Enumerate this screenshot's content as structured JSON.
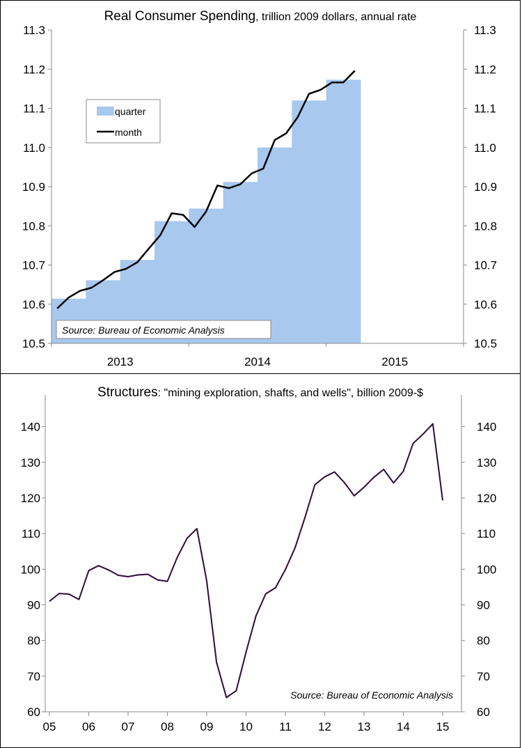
{
  "chart_data": [
    {
      "type": "bar",
      "title": "Real Consumer Spending",
      "subtitle": ", trillion 2009 dollars, annual rate",
      "ylim": [
        10.5,
        11.3
      ],
      "yticks": [
        "10.5",
        "10.6",
        "10.7",
        "10.8",
        "10.9",
        "11.0",
        "11.1",
        "11.2",
        "11.3"
      ],
      "xticks": [
        "2013",
        "2014",
        "2015"
      ],
      "source": "Source: Bureau of Economic Analysis",
      "legend_position": "upper-left",
      "series": [
        {
          "name": "quarter",
          "type": "step-area",
          "color": "#a8c8ee",
          "x": [
            "2013Q1",
            "2013Q2",
            "2013Q3",
            "2013Q4",
            "2014Q1",
            "2014Q2",
            "2014Q3",
            "2014Q4",
            "2015Q1",
            "2015Q2",
            "2015Q3",
            "2015Q4"
          ],
          "values": [
            10.614,
            10.661,
            10.713,
            10.812,
            10.844,
            10.912,
            11.0,
            11.12,
            11.173,
            null,
            null,
            null
          ]
        },
        {
          "name": "month",
          "type": "line",
          "color": "#000000",
          "x": [
            "2013-01",
            "2013-02",
            "2013-03",
            "2013-04",
            "2013-05",
            "2013-06",
            "2013-07",
            "2013-08",
            "2013-09",
            "2013-10",
            "2013-11",
            "2013-12",
            "2014-01",
            "2014-02",
            "2014-03",
            "2014-04",
            "2014-05",
            "2014-06",
            "2014-07",
            "2014-08",
            "2014-09",
            "2014-10",
            "2014-11",
            "2014-12",
            "2015-01",
            "2015-02",
            "2015-03"
          ],
          "values": [
            10.589,
            10.617,
            10.634,
            10.642,
            10.661,
            10.682,
            10.69,
            10.707,
            10.742,
            10.776,
            10.832,
            10.828,
            10.797,
            10.836,
            10.903,
            10.896,
            10.906,
            10.934,
            10.946,
            11.019,
            11.036,
            11.077,
            11.137,
            11.147,
            11.166,
            11.166,
            11.196
          ]
        }
      ]
    },
    {
      "type": "line",
      "title": "Structures",
      "subtitle": ": \"mining exploration, shafts, and wells\", billion 2009-$",
      "ylim": [
        60,
        145
      ],
      "yticks": [
        "60",
        "70",
        "80",
        "90",
        "100",
        "110",
        "120",
        "130",
        "140"
      ],
      "xticks": [
        "05",
        "06",
        "07",
        "08",
        "09",
        "10",
        "11",
        "12",
        "13",
        "14",
        "15"
      ],
      "source": "Source: Bureau of Economic Analysis",
      "series": [
        {
          "name": "",
          "color": "#2e0a3a",
          "x": [
            "2005Q1",
            "2005Q2",
            "2005Q3",
            "2005Q4",
            "2006Q1",
            "2006Q2",
            "2006Q3",
            "2006Q4",
            "2007Q1",
            "2007Q2",
            "2007Q3",
            "2007Q4",
            "2008Q1",
            "2008Q2",
            "2008Q3",
            "2008Q4",
            "2009Q1",
            "2009Q2",
            "2009Q3",
            "2009Q4",
            "2010Q1",
            "2010Q2",
            "2010Q3",
            "2010Q4",
            "2011Q1",
            "2011Q2",
            "2011Q3",
            "2011Q4",
            "2012Q1",
            "2012Q2",
            "2012Q3",
            "2012Q4",
            "2013Q1",
            "2013Q2",
            "2013Q3",
            "2013Q4",
            "2014Q1",
            "2014Q2",
            "2014Q3",
            "2014Q4",
            "2015Q1"
          ],
          "values": [
            91.0,
            93.2,
            93.0,
            91.5,
            99.6,
            101.0,
            99.8,
            98.3,
            97.9,
            98.4,
            98.6,
            97.0,
            96.6,
            103.3,
            108.7,
            111.4,
            96.7,
            73.9,
            64.0,
            65.9,
            76.7,
            86.8,
            93.1,
            94.8,
            99.9,
            106.1,
            114.6,
            123.7,
            125.9,
            127.3,
            124.3,
            120.6,
            123.0,
            125.8,
            128.0,
            124.2,
            127.5,
            135.3,
            137.9,
            140.8,
            119.3
          ]
        }
      ]
    }
  ]
}
